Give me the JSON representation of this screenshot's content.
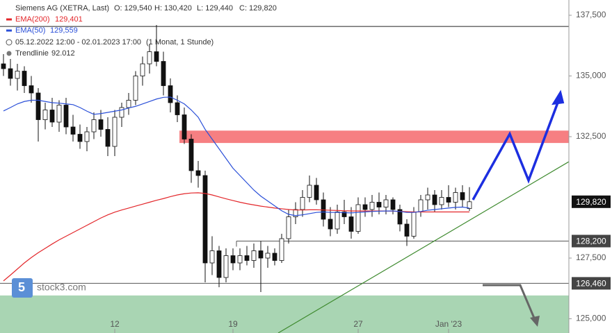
{
  "chart_data": {
    "type": "candlestick",
    "title": "Siemens AG (XETRA, Last)",
    "ohlc_header": {
      "open": "O: 129,540",
      "high": "H: 130,420",
      "low": "L: 129,440",
      "close": "C: 129,820"
    },
    "period": "05.12.2022 12:00 - 02.01.2023 17:00",
    "period_note": "(1 Monat, 1 Stunde)",
    "trendline_label": "Trendlinie",
    "trendline_value": "92.012",
    "brand": "stock3.com",
    "categories": [
      null,
      null,
      null,
      null,
      null,
      null,
      null,
      null,
      null,
      null,
      null,
      null,
      null,
      null,
      null,
      null,
      "12",
      null,
      null,
      null,
      null,
      null,
      null,
      null,
      null,
      null,
      null,
      null,
      null,
      null,
      null,
      null,
      null,
      "19",
      null,
      null,
      null,
      null,
      null,
      null,
      null,
      null,
      null,
      null,
      null,
      null,
      null,
      null,
      null,
      null,
      null,
      "27",
      null,
      null,
      null,
      null,
      null,
      null,
      null,
      null,
      null,
      null,
      null,
      null,
      "Jan '23",
      null,
      null,
      null
    ],
    "open": [
      135500,
      135300,
      134900,
      135200,
      134600,
      134300,
      133200,
      133600,
      133100,
      133800,
      132900,
      132600,
      132300,
      132700,
      133200,
      132800,
      132100,
      133300,
      133700,
      134000,
      135000,
      135500,
      136000,
      135600,
      134600,
      133900,
      133400,
      132400,
      131100,
      130900,
      127300,
      127800,
      126700,
      127600,
      127300,
      127600,
      127400,
      127800,
      127500,
      127700,
      127400,
      128300,
      129200,
      129500,
      130000,
      130500,
      129900,
      129100,
      128700,
      129400,
      129200,
      128600,
      129700,
      129500,
      129800,
      129600,
      129900,
      129500,
      128900,
      128400,
      129400,
      129900,
      130100,
      129700,
      130000,
      129800,
      130200,
      129540
    ],
    "high": [
      135900,
      135700,
      135500,
      135400,
      135000,
      134500,
      133900,
      134100,
      134000,
      134100,
      133400,
      133000,
      132900,
      133500,
      133600,
      133300,
      133600,
      133900,
      134300,
      135200,
      135800,
      136300,
      137100,
      136000,
      134900,
      134200,
      133700,
      132600,
      131500,
      131100,
      128400,
      128000,
      127900,
      127900,
      127900,
      128000,
      128100,
      128200,
      128000,
      127900,
      128500,
      129500,
      129800,
      130300,
      130900,
      130800,
      130200,
      129600,
      129700,
      129900,
      129600,
      130000,
      130000,
      130100,
      130200,
      130100,
      130000,
      129700,
      129100,
      129600,
      130100,
      130400,
      130300,
      130300,
      130500,
      130400,
      130500,
      130420
    ],
    "low": [
      135000,
      134600,
      134400,
      134300,
      133900,
      132300,
      132800,
      132900,
      132700,
      132600,
      132300,
      132000,
      131900,
      132400,
      132500,
      131700,
      131700,
      132900,
      133400,
      133800,
      134600,
      135100,
      135400,
      134200,
      133500,
      133100,
      132200,
      130600,
      130400,
      126500,
      126800,
      126300,
      126500,
      127000,
      127000,
      127200,
      127100,
      126100,
      127100,
      127200,
      127300,
      128100,
      128900,
      129200,
      129800,
      129700,
      128800,
      128400,
      128500,
      128900,
      128300,
      128500,
      129200,
      129200,
      129300,
      129300,
      129300,
      128600,
      128000,
      128300,
      129200,
      129500,
      129400,
      129500,
      129600,
      129500,
      129600,
      129440
    ],
    "close": [
      135300,
      134900,
      135200,
      134600,
      134300,
      133200,
      133600,
      133100,
      133800,
      132900,
      132600,
      132300,
      132700,
      133200,
      132800,
      132100,
      133300,
      133700,
      134000,
      135000,
      135500,
      136000,
      135600,
      134600,
      133900,
      133400,
      132400,
      131100,
      130900,
      127300,
      127800,
      126700,
      127600,
      127300,
      127600,
      127400,
      127800,
      127500,
      127700,
      127400,
      128300,
      129200,
      129500,
      130000,
      130500,
      129900,
      129100,
      128700,
      129400,
      129200,
      128600,
      129700,
      129500,
      129800,
      129600,
      129900,
      129500,
      128900,
      128400,
      129400,
      129900,
      130100,
      129700,
      130000,
      129800,
      130200,
      129900,
      129820
    ],
    "series": [
      {
        "name": "EMA(200)",
        "value_label": "129,401",
        "color": "#e3262a",
        "values": [
          126560,
          126800,
          127050,
          127300,
          127520,
          127720,
          127900,
          128080,
          128250,
          128400,
          128550,
          128700,
          128850,
          129000,
          129150,
          129280,
          129390,
          129480,
          129560,
          129640,
          129720,
          129800,
          129880,
          129950,
          130030,
          130100,
          130150,
          130180,
          130190,
          130160,
          130100,
          130020,
          129940,
          129870,
          129800,
          129740,
          129690,
          129640,
          129600,
          129560,
          129530,
          129500,
          129480,
          129480,
          129490,
          129490,
          129480,
          129470,
          129460,
          129450,
          129440,
          129440,
          129440,
          129440,
          129440,
          129440,
          129430,
          129420,
          129410,
          129400,
          129400,
          129400,
          129400,
          129400,
          129400,
          129400,
          129400,
          129401
        ]
      },
      {
        "name": "EMA(50)",
        "value_label": "129,559",
        "color": "#2a4fd8",
        "values": [
          133560,
          133700,
          133850,
          133950,
          134000,
          134000,
          133950,
          133900,
          133880,
          133850,
          133820,
          133700,
          133550,
          133420,
          133450,
          133500,
          133550,
          133600,
          133680,
          133750,
          133850,
          133950,
          134050,
          134120,
          134130,
          134000,
          133850,
          133600,
          133300,
          132800,
          132400,
          132000,
          131600,
          131200,
          130900,
          130600,
          130300,
          130050,
          129850,
          129650,
          129450,
          129300,
          129250,
          129280,
          129330,
          129380,
          129400,
          129380,
          129380,
          129370,
          129360,
          129380,
          129400,
          129420,
          129430,
          129440,
          129440,
          129420,
          129380,
          129380,
          129420,
          129470,
          129500,
          129530,
          129560,
          129590,
          129600,
          129559
        ]
      }
    ],
    "last_price": {
      "value": 129820,
      "label": "129,820"
    },
    "levels": [
      {
        "value": 137040
      },
      {
        "value": 128200,
        "label": "128,200"
      },
      {
        "value": 126460,
        "label": "126,460"
      }
    ],
    "resistance_zone": [
      132240,
      132750
    ],
    "support_zone_top": 125960,
    "trendline": {
      "x": [
        39.5,
        81.3
      ],
      "values": [
        124414,
        131470
      ]
    },
    "ylim": [
      124414,
      138129
    ],
    "yticks": [
      {
        "value": 125000,
        "label": "125,000"
      },
      {
        "value": 127500,
        "label": "127,500"
      },
      {
        "value": 132500,
        "label": "132,500"
      },
      {
        "value": 135000,
        "label": "135,000"
      },
      {
        "value": 137500,
        "label": "137,500"
      }
    ]
  }
}
